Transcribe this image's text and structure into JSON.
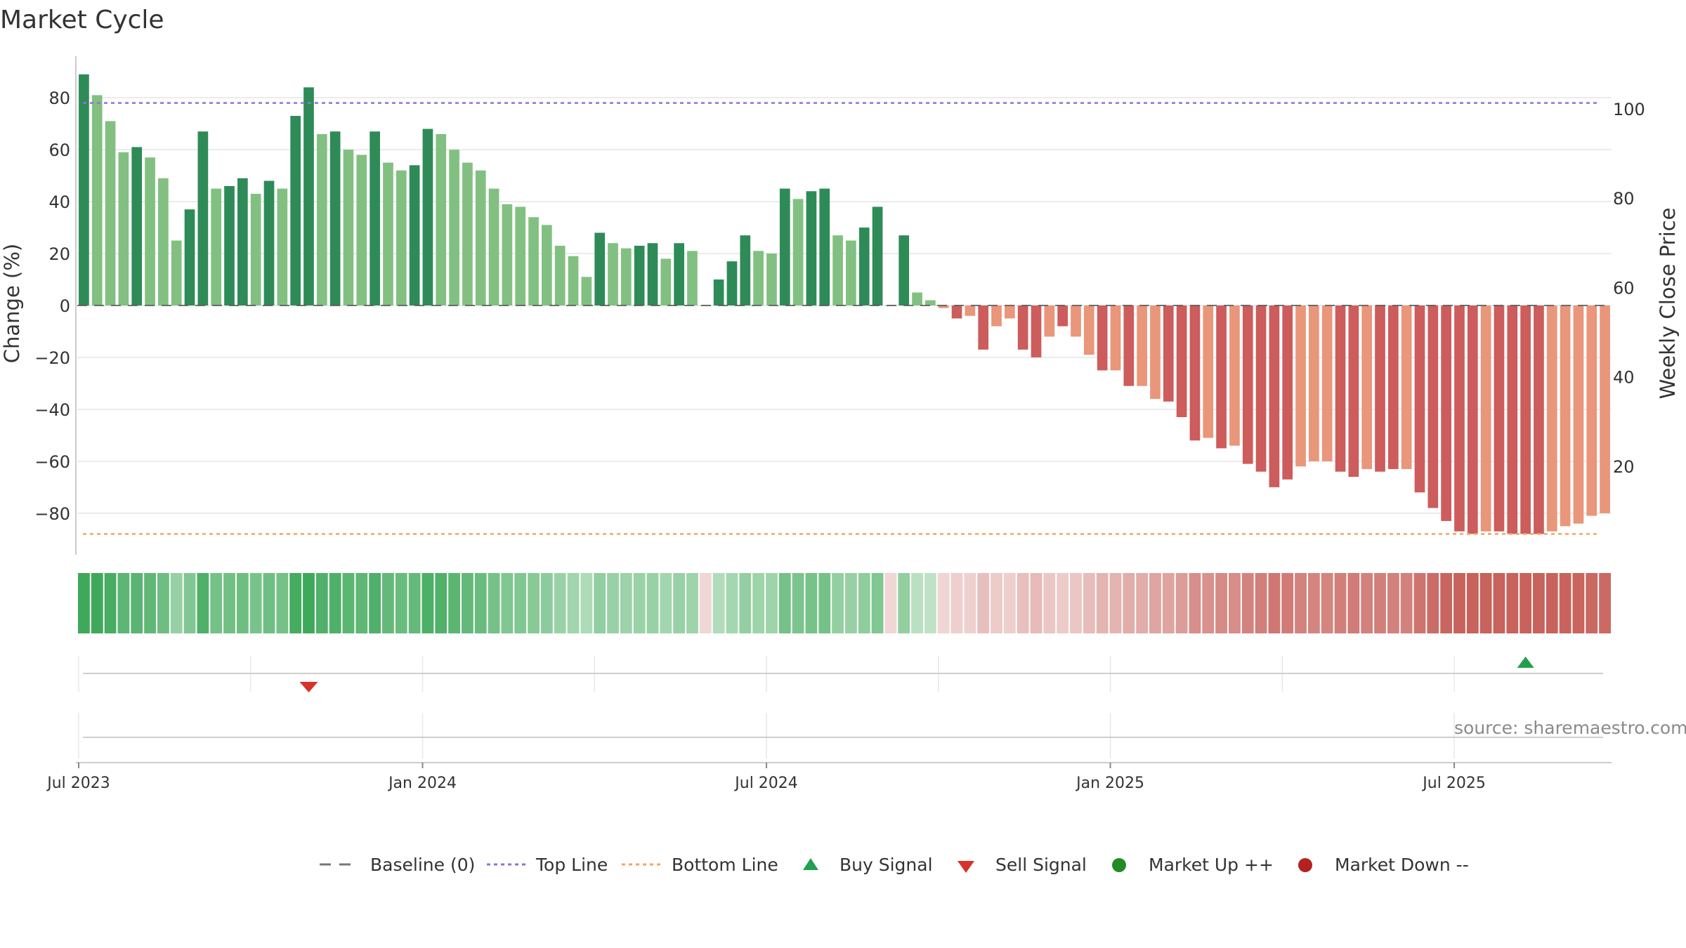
{
  "chart_data": {
    "type": "bar",
    "title": "Market Cycle",
    "ylabel_left": "Change (%)",
    "ylabel_right": "Weekly Close Price",
    "ylim": [
      -96,
      96
    ],
    "y_ticks": [
      80,
      60,
      40,
      20,
      0,
      -20,
      -40,
      -60,
      -80
    ],
    "y_tick_labels": [
      "80",
      "60",
      "40",
      "20",
      "0",
      "−20",
      "−40",
      "−60",
      "−80"
    ],
    "y2_ticks": [
      100,
      80,
      60,
      40,
      20
    ],
    "y2_tick_labels": [
      "100",
      "80",
      "60",
      "40",
      "20"
    ],
    "x_tick_labels": [
      "Jul 2023",
      "Jan 2024",
      "Jul 2024",
      "Jan 2025",
      "Jul 2025"
    ],
    "x_tick_weeks": [
      0,
      26,
      52,
      78,
      104
    ],
    "top_line": 78,
    "bottom_line": -88,
    "values": [
      89,
      81,
      71,
      59,
      61,
      57,
      49,
      25,
      37,
      67,
      45,
      46,
      49,
      43,
      48,
      45,
      73,
      84,
      66,
      67,
      60,
      58,
      67,
      55,
      52,
      54,
      68,
      66,
      60,
      55,
      52,
      45,
      39,
      38,
      34,
      31,
      23,
      19,
      11,
      28,
      24,
      22,
      23,
      24,
      18,
      24,
      21,
      0,
      10,
      17,
      27,
      21,
      20,
      45,
      41,
      44,
      45,
      27,
      25,
      30,
      38,
      0,
      27,
      5,
      2,
      -1,
      -5,
      -4,
      -17,
      -8,
      -5,
      -17,
      -20,
      -12,
      -8,
      -12,
      -19,
      -25,
      -25,
      -31,
      -31,
      -36,
      -37,
      -43,
      -52,
      -51,
      -55,
      -54,
      -61,
      -64,
      -70,
      -67,
      -62,
      -60,
      -60,
      -64,
      -66,
      -63,
      -64,
      -63,
      -63,
      -72,
      -78,
      -83,
      -87,
      -88,
      -87,
      -87,
      -88,
      -88,
      -88,
      -87,
      -85,
      -84,
      -81,
      -80
    ],
    "strong_indices": [
      0,
      4,
      8,
      9,
      11,
      12,
      14,
      16,
      17,
      19,
      22,
      25,
      26,
      39,
      42,
      43,
      45,
      48,
      49,
      50,
      53,
      55,
      56,
      59,
      60,
      62,
      66,
      68,
      71,
      72,
      74,
      77,
      79,
      82,
      83,
      84,
      86,
      88,
      89,
      90,
      91,
      95,
      96,
      98,
      99,
      101,
      102,
      103,
      104,
      105,
      107,
      108,
      109,
      110
    ],
    "colors": {
      "up_strong": "#2e8b57",
      "up_light": "#82c082",
      "down_strong": "#cd5c5c",
      "down_light": "#e9967a",
      "top_line": "#9370db",
      "bottom_line": "#f4a460",
      "baseline": "#555555",
      "buy": "#22a050",
      "sell": "#d9312b",
      "market_up": "#228b22",
      "market_down": "#b22222",
      "grid": "#e5e5e5"
    },
    "signals": [
      {
        "type": "sell",
        "week": 17
      },
      {
        "type": "buy",
        "week": 109
      }
    ],
    "legend": [
      "Baseline (0)",
      "Top Line",
      "Bottom Line",
      "Buy Signal",
      "Sell Signal",
      "Market Up ++",
      "Market Down --"
    ],
    "source_text": "source: sharemaestro.com",
    "grid": true
  }
}
